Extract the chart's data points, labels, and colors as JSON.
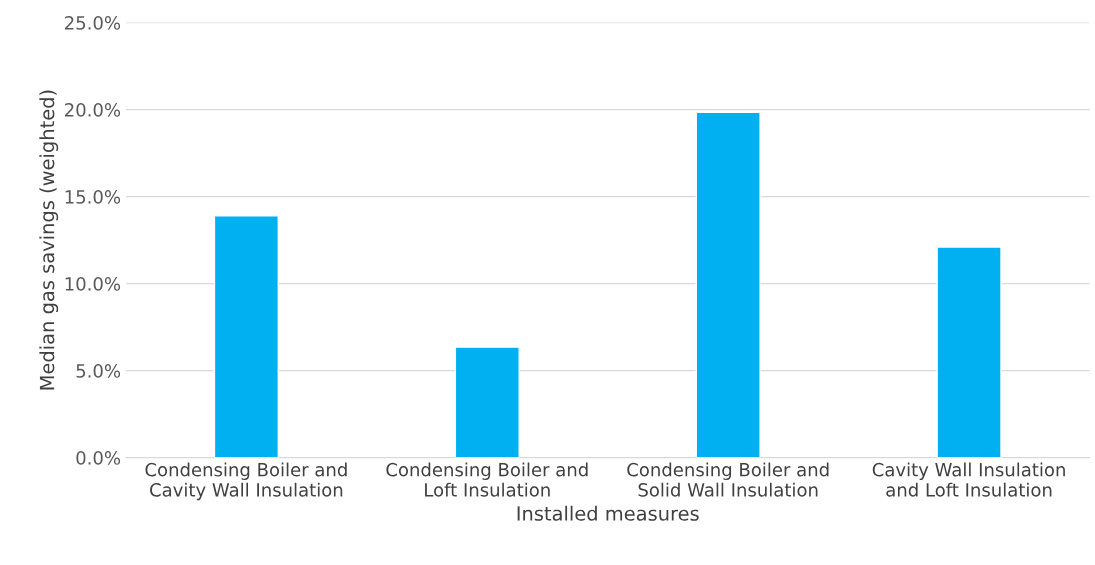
{
  "chart_data": {
    "type": "bar",
    "categories": [
      "Condensing Boiler and\nCavity Wall Insulation",
      "Condensing Boiler and\nLoft Insulation",
      "Condensing Boiler and\nSolid Wall Insulation",
      "Cavity Wall Insulation\nand Loft Insulation"
    ],
    "values": [
      13.9,
      6.35,
      19.85,
      12.1
    ],
    "color": "#00b0f0",
    "xlabel": "Installed measures",
    "ylabel": "Median gas savings (weighted)",
    "ylim": [
      0,
      25
    ],
    "yticks": [
      {
        "value": 0,
        "label": "0.0%"
      },
      {
        "value": 5,
        "label": "5.0%"
      },
      {
        "value": 10,
        "label": "10.0%"
      },
      {
        "value": 15,
        "label": "15.0%"
      },
      {
        "value": 20,
        "label": "20.0%"
      },
      {
        "value": 25,
        "label": "25.0%"
      }
    ],
    "grid": "y",
    "legend": false
  }
}
